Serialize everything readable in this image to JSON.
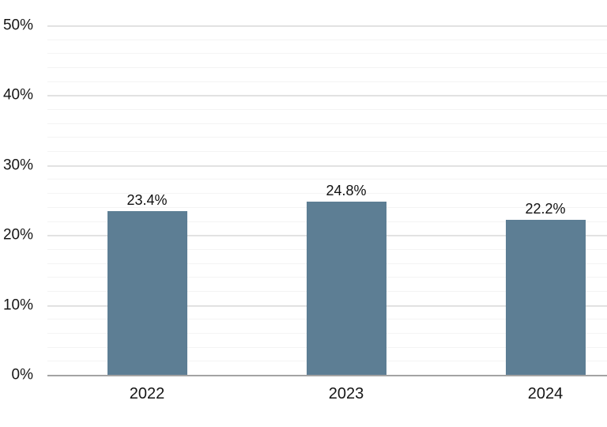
{
  "chart_data": {
    "type": "bar",
    "title": "",
    "xlabel": "",
    "ylabel": "",
    "categories": [
      "2022",
      "2023",
      "2024"
    ],
    "values": [
      23.4,
      24.8,
      22.2
    ],
    "data_labels": [
      "23.4%",
      "24.8%",
      "22.2%"
    ],
    "ylim": [
      0,
      50
    ],
    "y_major_ticks": [
      0,
      10,
      20,
      30,
      40,
      50
    ],
    "y_tick_labels": [
      "0%",
      "10%",
      "20%",
      "30%",
      "40%",
      "50%"
    ],
    "y_minor_step": 2,
    "grid": "horizontal-only, minor lines every 2%, no vertical gridlines",
    "legend": "none",
    "colors": {
      "bar": "#5d7e94",
      "major_gridline": "#e2e2e2",
      "minor_gridline": "#f4f4f4",
      "axis_line": "#a3a3a3",
      "label_text": "#161616",
      "background": "#ffffff"
    }
  }
}
